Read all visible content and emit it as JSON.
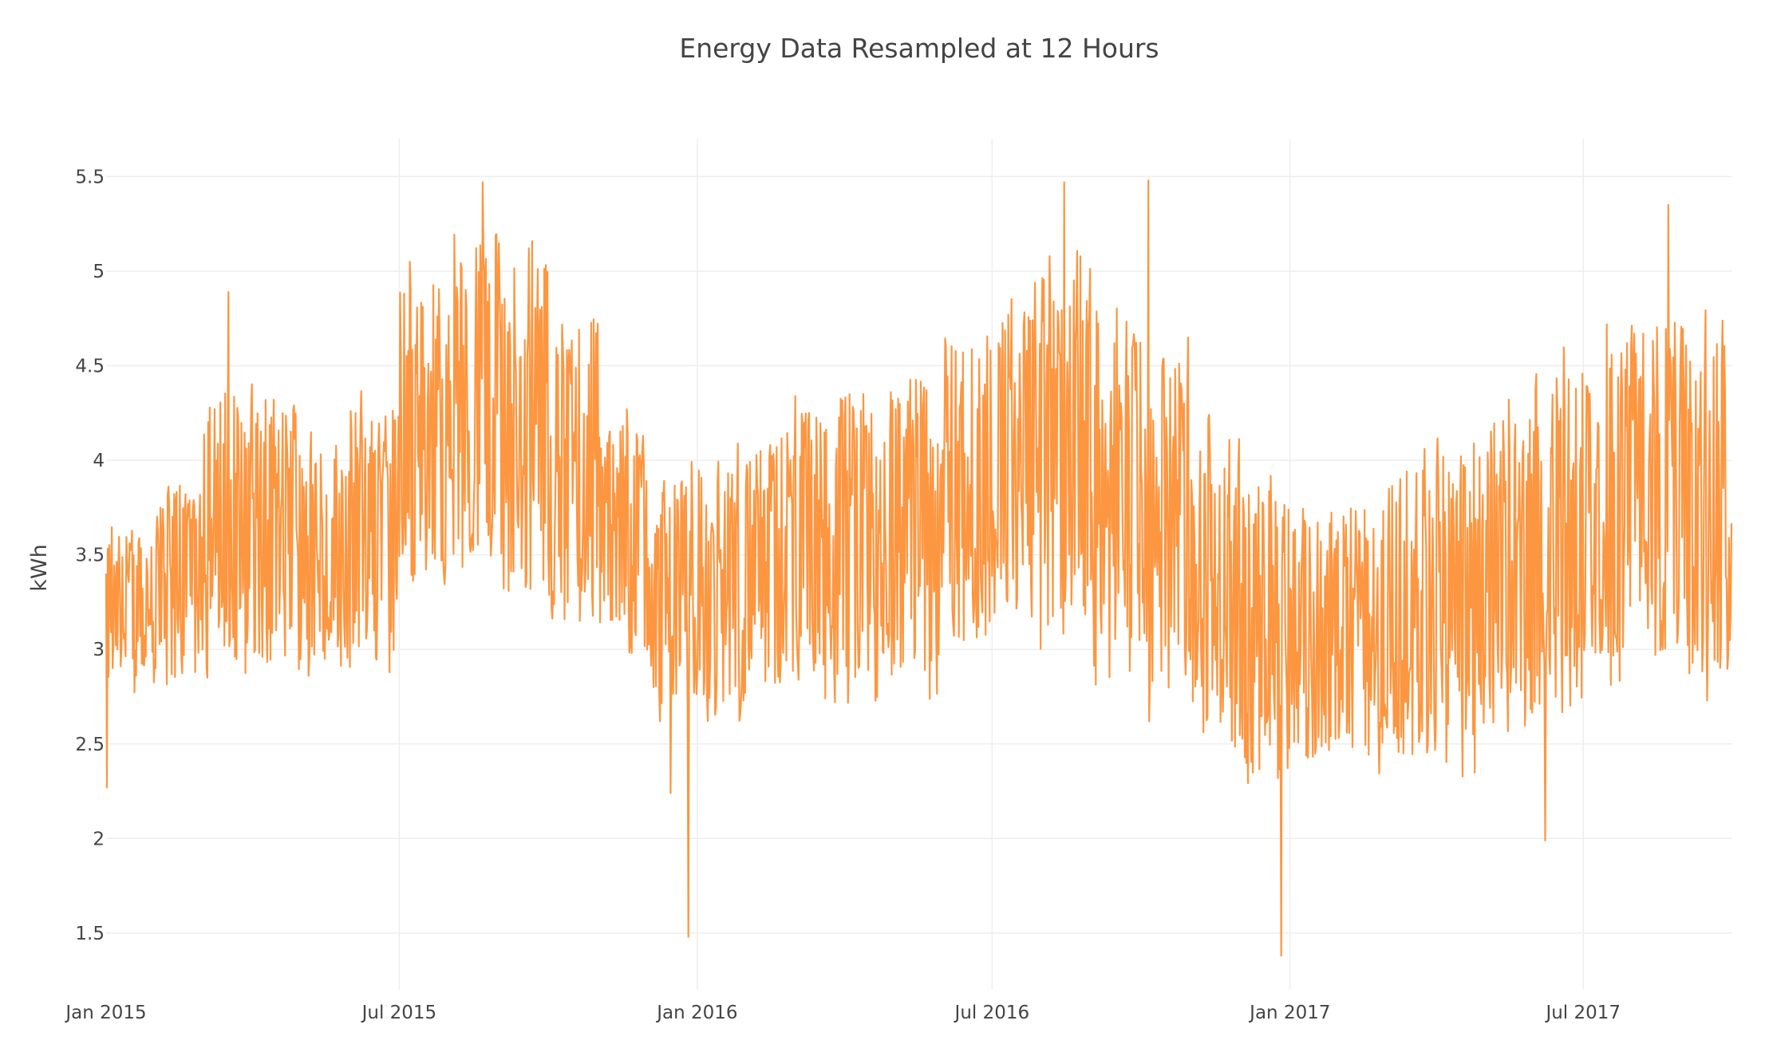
{
  "chart_data": {
    "type": "line",
    "title": "Energy Data Resampled at 12 Hours",
    "xlabel": "",
    "ylabel": "kWh",
    "xlim": [
      "2015-01-01",
      "2017-10-01"
    ],
    "ylim": [
      1.2,
      5.7
    ],
    "grid": true,
    "legend": "none",
    "line_color": "#fd9640",
    "x_ticks": [
      {
        "date": "2015-01-01",
        "label": "Jan 2015"
      },
      {
        "date": "2015-07-01",
        "label": "Jul 2015"
      },
      {
        "date": "2016-01-01",
        "label": "Jan 2016"
      },
      {
        "date": "2016-07-01",
        "label": "Jul 2016"
      },
      {
        "date": "2017-01-01",
        "label": "Jan 2017"
      },
      {
        "date": "2017-07-01",
        "label": "Jul 2017"
      }
    ],
    "y_ticks": [
      {
        "value": 1.5,
        "label": "1.5"
      },
      {
        "value": 2,
        "label": "2"
      },
      {
        "value": 2.5,
        "label": "2.5"
      },
      {
        "value": 3,
        "label": "3"
      },
      {
        "value": 3.5,
        "label": "3.5"
      },
      {
        "value": 4,
        "label": "4"
      },
      {
        "value": 4.5,
        "label": "4.5"
      },
      {
        "value": 5,
        "label": "5"
      },
      {
        "value": 5.5,
        "label": "5.5"
      }
    ],
    "sampling": "12H",
    "monthly_envelope": [
      {
        "month": "2015-01",
        "low": 2.75,
        "high": 3.7
      },
      {
        "month": "2015-02",
        "low": 2.7,
        "high": 4.0
      },
      {
        "month": "2015-03",
        "low": 2.8,
        "high": 4.5
      },
      {
        "month": "2015-04",
        "low": 2.8,
        "high": 4.5
      },
      {
        "month": "2015-05",
        "low": 2.8,
        "high": 4.2
      },
      {
        "month": "2015-06",
        "low": 2.8,
        "high": 4.4
      },
      {
        "month": "2015-07",
        "low": 3.2,
        "high": 5.1
      },
      {
        "month": "2015-08",
        "low": 3.4,
        "high": 5.35
      },
      {
        "month": "2015-09",
        "low": 3.1,
        "high": 5.2
      },
      {
        "month": "2015-10",
        "low": 3.0,
        "high": 4.9
      },
      {
        "month": "2015-11",
        "low": 2.8,
        "high": 4.3
      },
      {
        "month": "2015-12",
        "low": 2.6,
        "high": 4.0
      },
      {
        "month": "2016-01",
        "low": 2.6,
        "high": 4.1
      },
      {
        "month": "2016-02",
        "low": 2.7,
        "high": 4.2
      },
      {
        "month": "2016-03",
        "low": 2.7,
        "high": 4.4
      },
      {
        "month": "2016-04",
        "low": 2.7,
        "high": 4.5
      },
      {
        "month": "2016-05",
        "low": 2.7,
        "high": 4.6
      },
      {
        "month": "2016-06",
        "low": 2.9,
        "high": 4.8
      },
      {
        "month": "2016-07",
        "low": 3.0,
        "high": 5.1
      },
      {
        "month": "2016-08",
        "low": 3.0,
        "high": 5.25
      },
      {
        "month": "2016-09",
        "low": 2.8,
        "high": 5.0
      },
      {
        "month": "2016-10",
        "low": 2.6,
        "high": 4.7
      },
      {
        "month": "2016-11",
        "low": 2.3,
        "high": 4.3
      },
      {
        "month": "2016-12",
        "low": 2.2,
        "high": 4.0
      },
      {
        "month": "2017-01",
        "low": 2.3,
        "high": 3.9
      },
      {
        "month": "2017-02",
        "low": 2.3,
        "high": 3.9
      },
      {
        "month": "2017-03",
        "low": 2.3,
        "high": 4.1
      },
      {
        "month": "2017-04",
        "low": 2.3,
        "high": 4.3
      },
      {
        "month": "2017-05",
        "low": 2.4,
        "high": 4.4
      },
      {
        "month": "2017-06",
        "low": 2.5,
        "high": 4.6
      },
      {
        "month": "2017-07",
        "low": 2.8,
        "high": 4.9
      },
      {
        "month": "2017-08",
        "low": 2.8,
        "high": 4.9
      },
      {
        "month": "2017-09",
        "low": 2.7,
        "high": 4.8
      }
    ],
    "notable_points": [
      {
        "date": "2015-01-01",
        "value": 2.27
      },
      {
        "date": "2015-03-17",
        "value": 4.89
      },
      {
        "date": "2015-08-21",
        "value": 5.47
      },
      {
        "date": "2015-12-15",
        "value": 2.24
      },
      {
        "date": "2015-12-26",
        "value": 1.48
      },
      {
        "date": "2016-08-14",
        "value": 5.47
      },
      {
        "date": "2016-10-05",
        "value": 5.48
      },
      {
        "date": "2016-12-26",
        "value": 1.38
      },
      {
        "date": "2017-06-07",
        "value": 1.99
      },
      {
        "date": "2017-08-22",
        "value": 5.35
      }
    ]
  }
}
